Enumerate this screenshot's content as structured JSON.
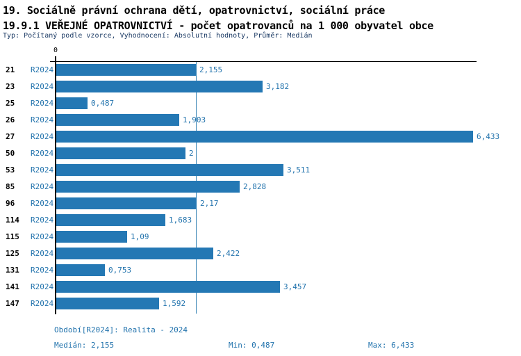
{
  "header": {
    "title_line1": "19. Sociálně právní ochrana dětí, opatrovnictví, sociální práce",
    "title_line2": "19.9.1 VEŘEJNÉ OPATROVNICTVÍ - počet opatrovanců na 1 000 obyvatel obce",
    "subtitle": "Typ: Počítaný podle vzorce, Vyhodnocení: Absolutní hodnoty, Průměr: Medián"
  },
  "chart_data": {
    "type": "bar",
    "orientation": "horizontal",
    "title": "19.9.1 VEŘEJNÉ OPATROVNICTVÍ - počet opatrovanců na 1 000 obyvatel obce",
    "categories": [
      "21",
      "23",
      "25",
      "26",
      "27",
      "50",
      "53",
      "85",
      "96",
      "114",
      "115",
      "125",
      "131",
      "141",
      "147"
    ],
    "series_label": "R2024",
    "values": [
      2.155,
      3.182,
      0.487,
      1.903,
      6.433,
      2.0,
      3.511,
      2.828,
      2.17,
      1.683,
      1.09,
      2.422,
      0.753,
      3.457,
      1.592
    ],
    "value_labels": [
      "2,155",
      "3,182",
      "0,487",
      "1,903",
      "6,433",
      "2",
      "3,511",
      "2,828",
      "2,17",
      "1,683",
      "1,09",
      "2,422",
      "0,753",
      "3,457",
      "1,592"
    ],
    "xlim": [
      0,
      6.49
    ],
    "x_axis_tick_label": "0",
    "median_line_value": 2.155,
    "legend_position": "none",
    "grid": false
  },
  "footer": {
    "period": "Období[R2024]: Realita - 2024",
    "median": "Medián: 2,155",
    "min": "Min: 0,487",
    "max": "Max: 6,433"
  },
  "colors": {
    "bar": "#2478b4",
    "text_blue": "#2273ad",
    "subtitle_navy": "#1b3a64",
    "median_line": "#3b86b6",
    "axis": "#000000"
  }
}
